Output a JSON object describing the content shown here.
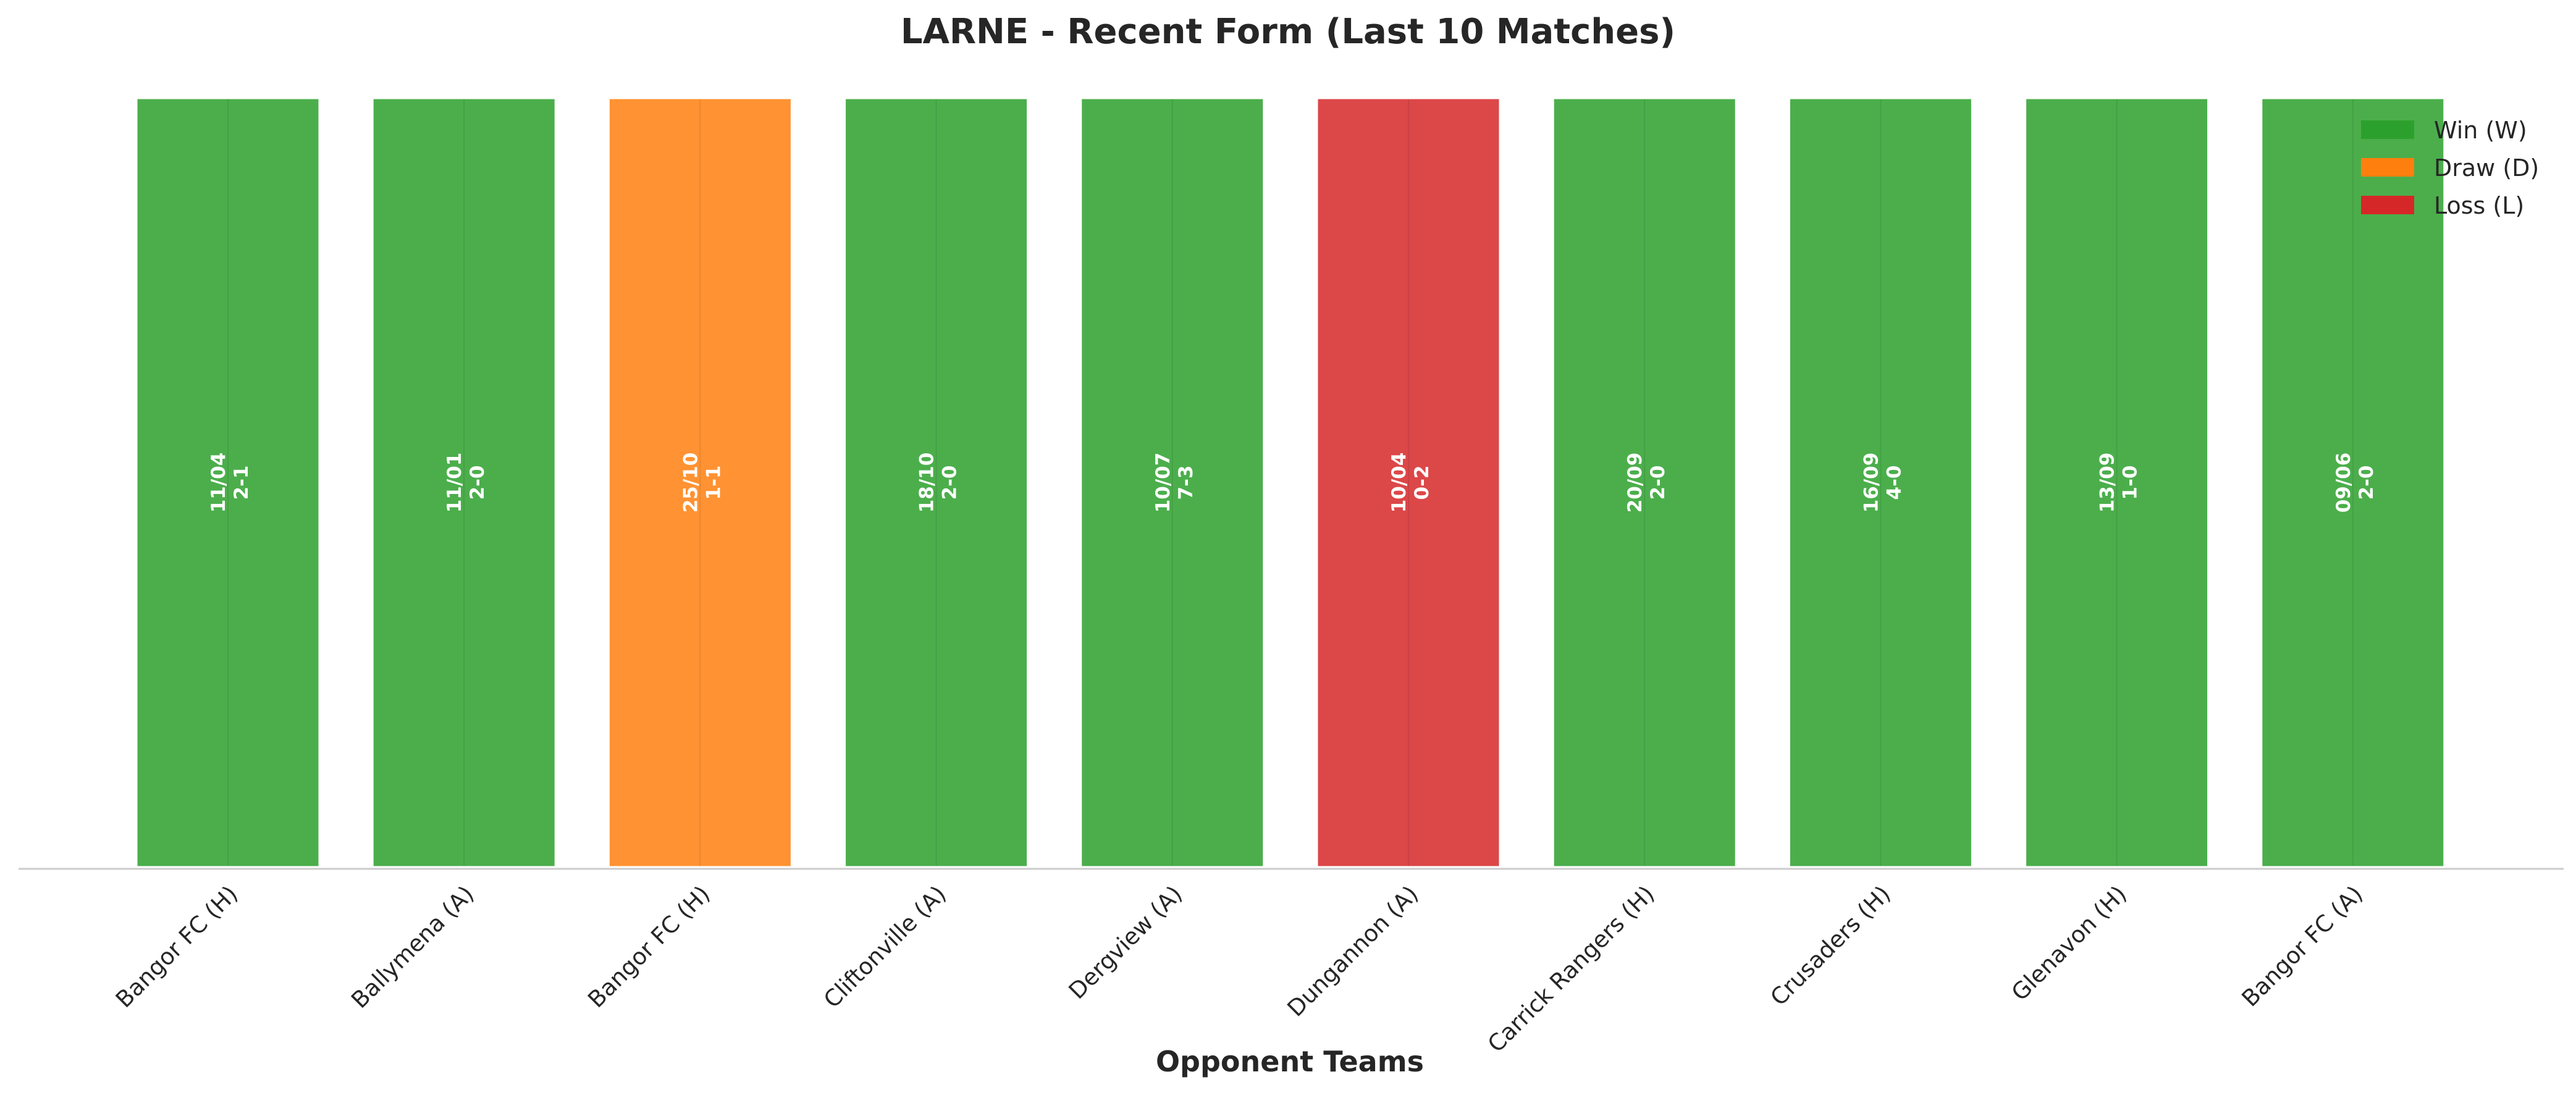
{
  "chart_data": {
    "type": "bar",
    "title": "LARNE - Recent Form (Last 10 Matches)",
    "xlabel": "Opponent Teams",
    "ylabel": "",
    "ylim": [
      0,
      1
    ],
    "grid": false,
    "legend_position": "top-right",
    "categories": [
      "Bangor FC (H)",
      "Ballymena (A)",
      "Bangor FC (H)",
      "Cliftonville (A)",
      "Dergview (A)",
      "Dungannon (A)",
      "Carrick Rangers (H)",
      "Crusaders (H)",
      "Glenavon (H)",
      "Bangor FC (A)"
    ],
    "values": [
      1,
      1,
      1,
      1,
      1,
      1,
      1,
      1,
      1,
      1
    ],
    "results": [
      "W",
      "W",
      "D",
      "W",
      "W",
      "L",
      "W",
      "W",
      "W",
      "W"
    ],
    "dates": [
      "11/04",
      "11/01",
      "25/10",
      "18/10",
      "10/07",
      "10/04",
      "20/09",
      "16/09",
      "13/09",
      "09/06"
    ],
    "scores": [
      "2-1",
      "2-0",
      "1-1",
      "2-0",
      "7-3",
      "0-2",
      "2-0",
      "4-0",
      "1-0",
      "2-0"
    ],
    "legend": [
      {
        "key": "W",
        "label": "Win (W)",
        "color": "#2ca02c"
      },
      {
        "key": "D",
        "label": "Draw (D)",
        "color": "#ff7f0e"
      },
      {
        "key": "L",
        "label": "Loss (L)",
        "color": "#d62728"
      }
    ],
    "bar_opacity": 0.85
  }
}
